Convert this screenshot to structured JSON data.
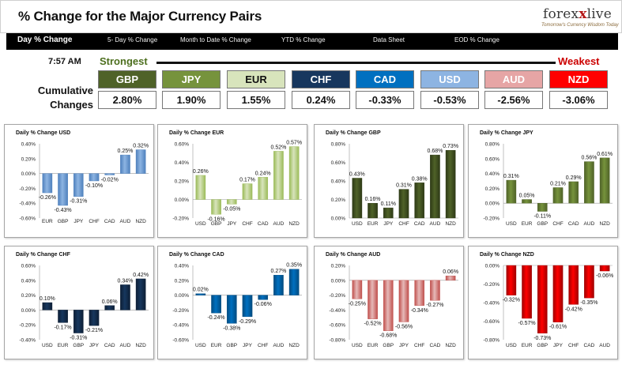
{
  "header": {
    "title": "% Change for the Major Currency Pairs",
    "logo_text_left": "forex",
    "logo_text_x": "x",
    "logo_text_right": "live",
    "logo_tagline": "Tomorrow's Currency Wisdom Today"
  },
  "nav": {
    "items": [
      "Day % Change",
      "5- Day % Change",
      "Month to Date % Change",
      "YTD % Change",
      "Data Sheet",
      "EOD % Change"
    ],
    "active": "Day % Change"
  },
  "summary": {
    "time": "7:57 AM",
    "strongest_label": "Strongest",
    "weakest_label": "Weakest",
    "cumulative_label_1": "Cumulative",
    "cumulative_label_2": "Changes",
    "currencies": [
      {
        "code": "GBP",
        "value": "2.80%",
        "color": "#4f6228",
        "text_color": "#ffffff"
      },
      {
        "code": "JPY",
        "value": "1.90%",
        "color": "#76933c",
        "text_color": "#ffffff"
      },
      {
        "code": "EUR",
        "value": "1.55%",
        "color": "#d8e4bc",
        "text_color": "#111111"
      },
      {
        "code": "CHF",
        "value": "0.24%",
        "color": "#17375e",
        "text_color": "#ffffff"
      },
      {
        "code": "CAD",
        "value": "-0.33%",
        "color": "#0070c0",
        "text_color": "#ffffff"
      },
      {
        "code": "USD",
        "value": "-0.53%",
        "color": "#8db4e2",
        "text_color": "#ffffff"
      },
      {
        "code": "AUD",
        "value": "-2.56%",
        "color": "#e6a5a5",
        "text_color": "#ffffff"
      },
      {
        "code": "NZD",
        "value": "-3.06%",
        "color": "#ff0000",
        "text_color": "#ffffff"
      }
    ]
  },
  "chart_data": [
    {
      "type": "bar",
      "title": "Daily % Change USD",
      "categories": [
        "EUR",
        "GBP",
        "JPY",
        "CHF",
        "CAD",
        "AUD",
        "NZD"
      ],
      "values": [
        -0.26,
        -0.43,
        -0.31,
        -0.1,
        -0.02,
        0.25,
        0.32
      ],
      "labels": [
        "-0.26%",
        "-0.43%",
        "-0.31%",
        "-0.10%",
        "-0.02%",
        "0.25%",
        "0.32%"
      ],
      "ylim": [
        -0.6,
        0.4
      ],
      "ticks": [
        0.4,
        0.2,
        0.0,
        -0.2,
        -0.4,
        -0.6
      ],
      "tick_labels": [
        "0.40%",
        "0.20%",
        "0.00%",
        "-0.20%",
        "-0.40%",
        "-0.60%"
      ],
      "bar_color": "#8db4e2",
      "bar_dark": "#4f81bd",
      "grid": false,
      "category_axis": "top"
    },
    {
      "type": "bar",
      "title": "Daily % Change EUR",
      "categories": [
        "USD",
        "GBP",
        "JPY",
        "CHF",
        "CAD",
        "AUD",
        "NZD"
      ],
      "values": [
        0.26,
        -0.16,
        -0.05,
        0.17,
        0.24,
        0.52,
        0.57
      ],
      "labels": [
        "0.26%",
        "-0.16%",
        "-0.05%",
        "0.17%",
        "0.24%",
        "0.52%",
        "0.57%"
      ],
      "ylim": [
        -0.2,
        0.6
      ],
      "ticks": [
        0.6,
        0.4,
        0.2,
        0.0,
        -0.2
      ],
      "tick_labels": [
        "0.60%",
        "0.40%",
        "0.20%",
        "0.00%",
        "-0.20%"
      ],
      "bar_color": "#d8e4bc",
      "bar_dark": "#9bbb59",
      "grid": false,
      "category_axis": "bottom"
    },
    {
      "type": "bar",
      "title": "Daily % Change GBP",
      "categories": [
        "USD",
        "EUR",
        "JPY",
        "CHF",
        "CAD",
        "AUD",
        "NZD"
      ],
      "values": [
        0.43,
        0.16,
        0.11,
        0.31,
        0.38,
        0.68,
        0.73
      ],
      "labels": [
        "0.43%",
        "0.16%",
        "0.11%",
        "0.31%",
        "0.38%",
        "0.68%",
        "0.73%"
      ],
      "ylim": [
        0,
        0.8
      ],
      "ticks": [
        0.8,
        0.6,
        0.4,
        0.2,
        0.0
      ],
      "tick_labels": [
        "0.80%",
        "0.60%",
        "0.40%",
        "0.20%",
        "0.00%"
      ],
      "bar_color": "#4f6228",
      "bar_dark": "#2e3a16",
      "grid": false,
      "category_axis": "bottom"
    },
    {
      "type": "bar",
      "title": "Daily % Change JPY",
      "categories": [
        "USD",
        "EUR",
        "GBP",
        "CHF",
        "CAD",
        "AUD",
        "NZD"
      ],
      "values": [
        0.31,
        0.05,
        -0.11,
        0.21,
        0.29,
        0.56,
        0.61
      ],
      "labels": [
        "0.31%",
        "0.05%",
        "-0.11%",
        "0.21%",
        "0.29%",
        "0.56%",
        "0.61%"
      ],
      "ylim": [
        -0.2,
        0.8
      ],
      "ticks": [
        0.8,
        0.6,
        0.4,
        0.2,
        0.0,
        -0.2
      ],
      "tick_labels": [
        "0.80%",
        "0.60%",
        "0.40%",
        "0.20%",
        "0.00%",
        "-0.20%"
      ],
      "bar_color": "#76933c",
      "bar_dark": "#4f6228",
      "grid": false,
      "category_axis": "bottom"
    },
    {
      "type": "bar",
      "title": "Daily % Change CHF",
      "categories": [
        "USD",
        "EUR",
        "GBP",
        "JPY",
        "CAD",
        "AUD",
        "NZD"
      ],
      "values": [
        0.1,
        -0.17,
        -0.31,
        -0.21,
        0.06,
        0.34,
        0.42
      ],
      "labels": [
        "0.10%",
        "-0.17%",
        "-0.31%",
        "-0.21%",
        "0.06%",
        "0.34%",
        "0.42%"
      ],
      "ylim": [
        -0.4,
        0.6
      ],
      "ticks": [
        0.6,
        0.4,
        0.2,
        0.0,
        -0.2,
        -0.4
      ],
      "tick_labels": [
        "0.60%",
        "0.40%",
        "0.20%",
        "0.00%",
        "-0.20%",
        "-0.40%"
      ],
      "bar_color": "#17375e",
      "bar_dark": "#0d1f36",
      "grid": false,
      "category_axis": "bottom"
    },
    {
      "type": "bar",
      "title": "Daily % Change CAD",
      "categories": [
        "USD",
        "EUR",
        "GBP",
        "JPY",
        "CHF",
        "AUD",
        "NZD"
      ],
      "values": [
        0.02,
        -0.24,
        -0.38,
        -0.29,
        -0.06,
        0.27,
        0.35
      ],
      "labels": [
        "0.02%",
        "-0.24%",
        "-0.38%",
        "-0.29%",
        "-0.06%",
        "0.27%",
        "0.35%"
      ],
      "ylim": [
        -0.6,
        0.4
      ],
      "ticks": [
        0.4,
        0.2,
        0.0,
        -0.2,
        -0.4,
        -0.6
      ],
      "tick_labels": [
        "0.40%",
        "0.20%",
        "0.00%",
        "-0.20%",
        "-0.40%",
        "-0.60%"
      ],
      "bar_color": "#0070c0",
      "bar_dark": "#004b80",
      "grid": false,
      "category_axis": "bottom"
    },
    {
      "type": "bar",
      "title": "Daily % Change AUD",
      "categories": [
        "USD",
        "EUR",
        "GBP",
        "JPY",
        "CHF",
        "CAD",
        "NZD"
      ],
      "values": [
        -0.25,
        -0.52,
        -0.68,
        -0.56,
        -0.34,
        -0.27,
        0.06
      ],
      "labels": [
        "-0.25%",
        "-0.52%",
        "-0.68%",
        "-0.56%",
        "-0.34%",
        "-0.27%",
        "0.06%"
      ],
      "ylim": [
        -0.8,
        0.2
      ],
      "ticks": [
        0.2,
        0.0,
        -0.2,
        -0.4,
        -0.6,
        -0.8
      ],
      "tick_labels": [
        "0.20%",
        "0.00%",
        "-0.20%",
        "-0.40%",
        "-0.60%",
        "-0.80%"
      ],
      "bar_color": "#e6b9b8",
      "bar_dark": "#c0504d",
      "grid": false,
      "category_axis": "bottom"
    },
    {
      "type": "bar",
      "title": "Daily % Change NZD",
      "categories": [
        "USD",
        "EUR",
        "GBP",
        "JPY",
        "CHF",
        "CAD",
        "AUD"
      ],
      "values": [
        -0.32,
        -0.57,
        -0.73,
        -0.61,
        -0.42,
        -0.35,
        -0.06
      ],
      "labels": [
        "-0.32%",
        "-0.57%",
        "-0.73%",
        "-0.61%",
        "-0.42%",
        "-0.35%",
        "-0.06%"
      ],
      "ylim": [
        -0.8,
        0.0
      ],
      "ticks": [
        0.0,
        -0.2,
        -0.4,
        -0.6,
        -0.8
      ],
      "tick_labels": [
        "0.00%",
        "-0.20%",
        "-0.40%",
        "-0.60%",
        "-0.80%"
      ],
      "bar_color": "#ff0000",
      "bar_dark": "#a00000",
      "grid": false,
      "category_axis": "bottom"
    }
  ]
}
